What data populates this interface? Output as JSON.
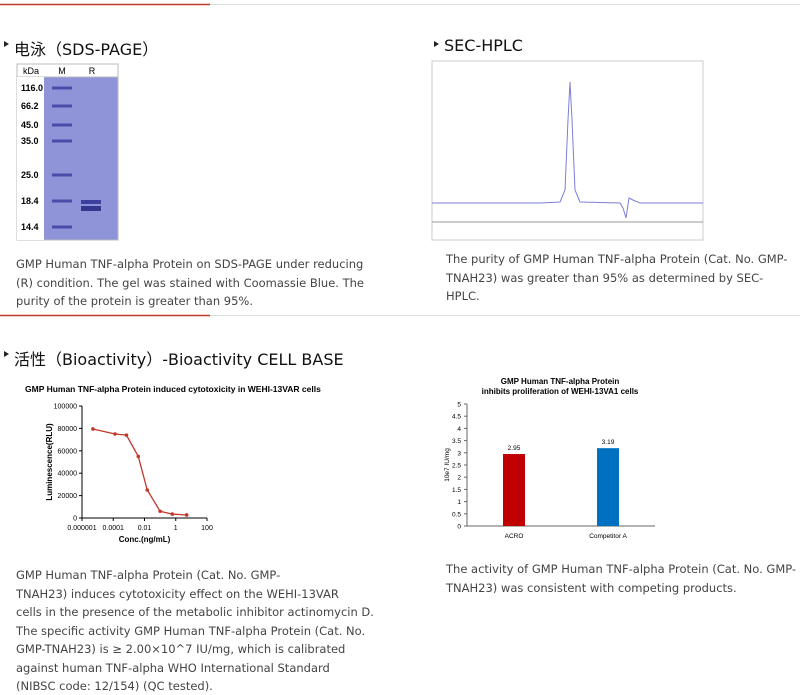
{
  "sds_page": {
    "title": "电泳（SDS-PAGE）",
    "lanes": [
      "kDa",
      "M",
      "R"
    ],
    "markers": [
      "116.0",
      "66.2",
      "45.0",
      "35.0",
      "25.0",
      "18.4",
      "14.4"
    ],
    "caption": [
      "GMP Human TNF-alpha Protein on SDS-PAGE under reducing",
      "(R) condition. The gel was stained with Coomassie Blue. The",
      "purity of the protein is greater than 95%."
    ]
  },
  "sec_hplc": {
    "title": "SEC-HPLC",
    "caption": [
      "The purity of GMP Human TNF-alpha Protein (Cat. No. GMP-",
      "TNAH23) was greater than 95% as determined by SEC-",
      "HPLC."
    ]
  },
  "bioactivity": {
    "title": "活性（Bioactivity）-Bioactivity CELL BASE",
    "captions": [
      [
        "GMP Human TNF-alpha Protein (Cat. No. GMP-",
        "TNAH23) induces cytotoxicity effect on the WEHI-13VAR",
        "cells in the presence of the metabolic inhibitor actinomycin D.",
        "The specific activity GMP Human TNF-alpha Protein (Cat. No.",
        "GMP-TNAH23) is ≥ 2.00×10^7 IU/mg, which is calibrated",
        "against human TNF-alpha WHO International Standard",
        "(NIBSC code: 12/154) (QC tested)."
      ],
      [
        "The activity of GMP Human TNF-alpha Protein (Cat. No. GMP-",
        "TNAH23) was consistent with competing products."
      ]
    ]
  },
  "chart_data": [
    {
      "type": "line",
      "title": "GMP Human TNF-alpha Protein induced cytotoxicity in WEHI-13VAR cells",
      "x_label": "Conc.(ng/mL)",
      "y_label": "Luminescence(RLU)",
      "log_x": true,
      "x": [
        5e-06,
        0.00013,
        0.0007,
        0.004,
        0.015,
        0.1,
        0.6,
        5
      ],
      "series": [
        {
          "name": "GMP-TNAH23",
          "color": "#c0392b",
          "values": [
            79500,
            75000,
            74000,
            55000,
            25000,
            6000,
            3500,
            2700
          ]
        }
      ],
      "xlim": [
        1e-06,
        100
      ],
      "xticks": [
        1e-06,
        0.0001,
        0.01,
        1,
        100
      ],
      "ylim": [
        0,
        100000
      ],
      "yticks": [
        0,
        20000,
        40000,
        60000,
        80000,
        100000
      ]
    },
    {
      "type": "bar",
      "title": [
        "GMP Human TNF-alpha Protein",
        "inhibits proliferation of WEHI-13VA1 cells"
      ],
      "y_label": "10e7 IU/mg",
      "categories": [
        "ACRO",
        "Competitor A"
      ],
      "values": [
        2.95,
        3.19
      ],
      "colors": [
        "#c00000",
        "#0070c0"
      ],
      "ylim": [
        0,
        5
      ],
      "yticks": [
        0,
        0.5,
        1,
        1.5,
        2,
        2.5,
        3,
        3.5,
        4,
        4.5,
        5
      ]
    }
  ]
}
